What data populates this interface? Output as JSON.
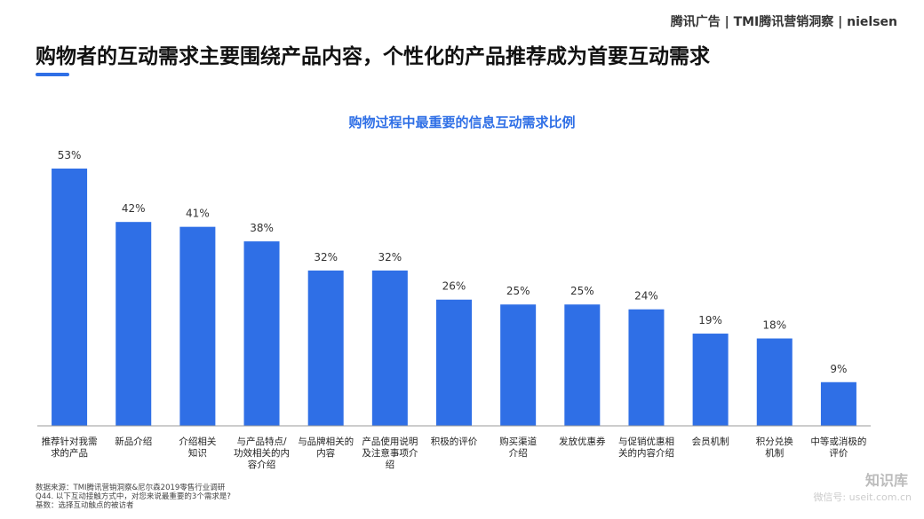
{
  "chart_data": {
    "type": "bar",
    "brand": "腾讯广告 | TMI腾讯营销洞察 | nielsen",
    "title": "购物者的互动需求主要围绕产品内容，个性化的产品推荐成为首要互动需求",
    "subtitle": "购物过程中最重要的信息互动需求比例",
    "categories": [
      "推荐针对我需\n求的产品",
      "新品介绍",
      "介绍相关\n知识",
      "与产品特点/\n功效相关的内\n容介绍",
      "与品牌相关的\n内容",
      "产品使用说明\n及注意事项介\n绍",
      "积极的评价",
      "购买渠道\n介绍",
      "发放优惠券",
      "与促销优惠相\n关的内容介绍",
      "会员机制",
      "积分兑换\n机制",
      "中等或消极的\n评价"
    ],
    "values": [
      53,
      42,
      41,
      38,
      32,
      32,
      26,
      25,
      25,
      24,
      19,
      18,
      9
    ],
    "value_labels": [
      "53%",
      "42%",
      "41%",
      "38%",
      "32%",
      "32%",
      "26%",
      "25%",
      "25%",
      "24%",
      "19%",
      "18%",
      "9%"
    ],
    "color": "#2f6fe6",
    "notes": [
      "数据来源：TMI腾讯营销洞察&尼尔森2019零售行业调研",
      "Q44. 以下互动接触方式中，对您来说最重要的3个需求是?",
      "基数：选择互动触点的被访者"
    ],
    "watermark": "知识库",
    "watermark_sub": "微信号: useit.com.cn"
  }
}
